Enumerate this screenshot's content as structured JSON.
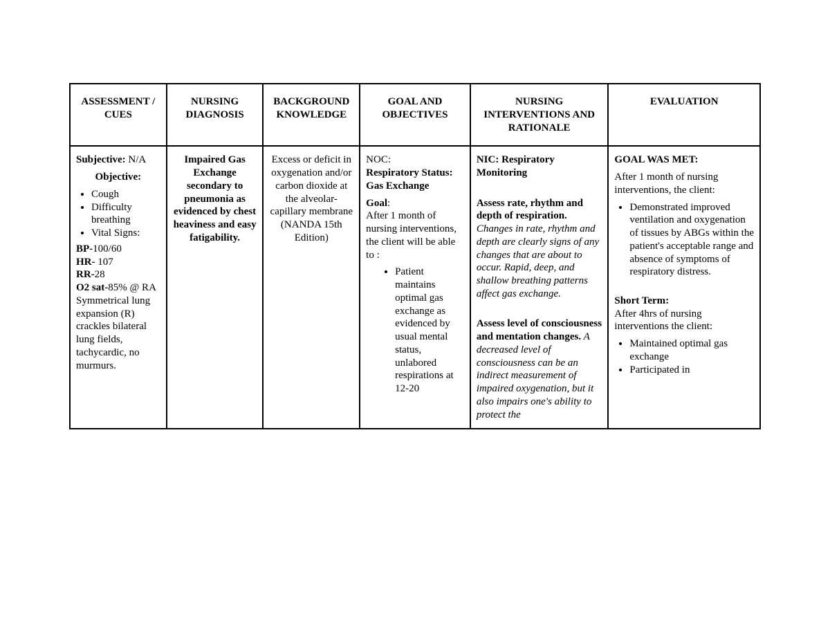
{
  "headers": {
    "c1": "ASSESSMENT / CUES",
    "c2": "NURSING DIAGNOSIS",
    "c3": "BACKGROUND KNOWLEDGE",
    "c4": "GOAL AND OBJECTIVES",
    "c5": "NURSING INTERVENTIONS AND RATIONALE",
    "c6": "EVALUATION"
  },
  "assessment": {
    "subjective_label": "Subjective:",
    "subjective_value": "N/A",
    "objective_label": "Objective",
    "objective_bullets": [
      "Cough",
      "Difficulty breathing",
      "Vital Signs:"
    ],
    "vitals": {
      "bp_label": "BP-",
      "bp_value": "100/60",
      "hr_label": "HR-",
      "hr_value": " 107",
      "rr_label": "RR-",
      "rr_value": "28",
      "o2_label": "O2 sat-",
      "o2_value": "85% @ RA"
    },
    "findings": "Symmetrical lung expansion (R) crackles bilateral lung fields, tachycardic, no murmurs."
  },
  "diagnosis": {
    "text": "Impaired Gas Exchange secondary to pneumonia as evidenced by chest heaviness and easy fatigability."
  },
  "background": {
    "text": "Excess or deficit in oxygenation and/or carbon dioxide at the alveolar-capillary membrane (NANDA 15th Edition)"
  },
  "goal": {
    "noc_label": "NOC:",
    "noc_value": "Respiratory Status: Gas Exchange",
    "goal_label": "Goal",
    "goal_text": "After 1 month of nursing interventions, the client will be able to :",
    "bullets": [
      "Patient maintains optimal gas exchange as evidenced by usual mental status, unlabored respirations at 12-20"
    ]
  },
  "interventions": {
    "nic_label": "NIC:",
    "nic_value": " Respiratory Monitoring",
    "int1_bold": "Assess rate, rhythm and depth of respiration.",
    "int1_italic": " Changes in rate, rhythm and depth are clearly signs of any changes that are about to occur. Rapid, deep, and shallow breathing patterns affect gas exchange.",
    "int2_bold": "Assess level of consciousness and mentation changes.",
    "int2_italic": " A decreased level of consciousness can be an indirect measurement of impaired oxygenation, but it also impairs one's ability to protect the"
  },
  "evaluation": {
    "met_label": "GOAL WAS MET:",
    "met_intro": "After 1 month of nursing interventions, the client:",
    "met_bullets": [
      "Demonstrated improved ventilation and oxygenation of tissues by ABGs within the patient's acceptable range and absence of symptoms of respiratory distress."
    ],
    "short_label": "Short Term:",
    "short_intro": "After 4hrs of nursing interventions the client:",
    "short_bullets": [
      "Maintained optimal gas exchange",
      "Participated in"
    ]
  }
}
